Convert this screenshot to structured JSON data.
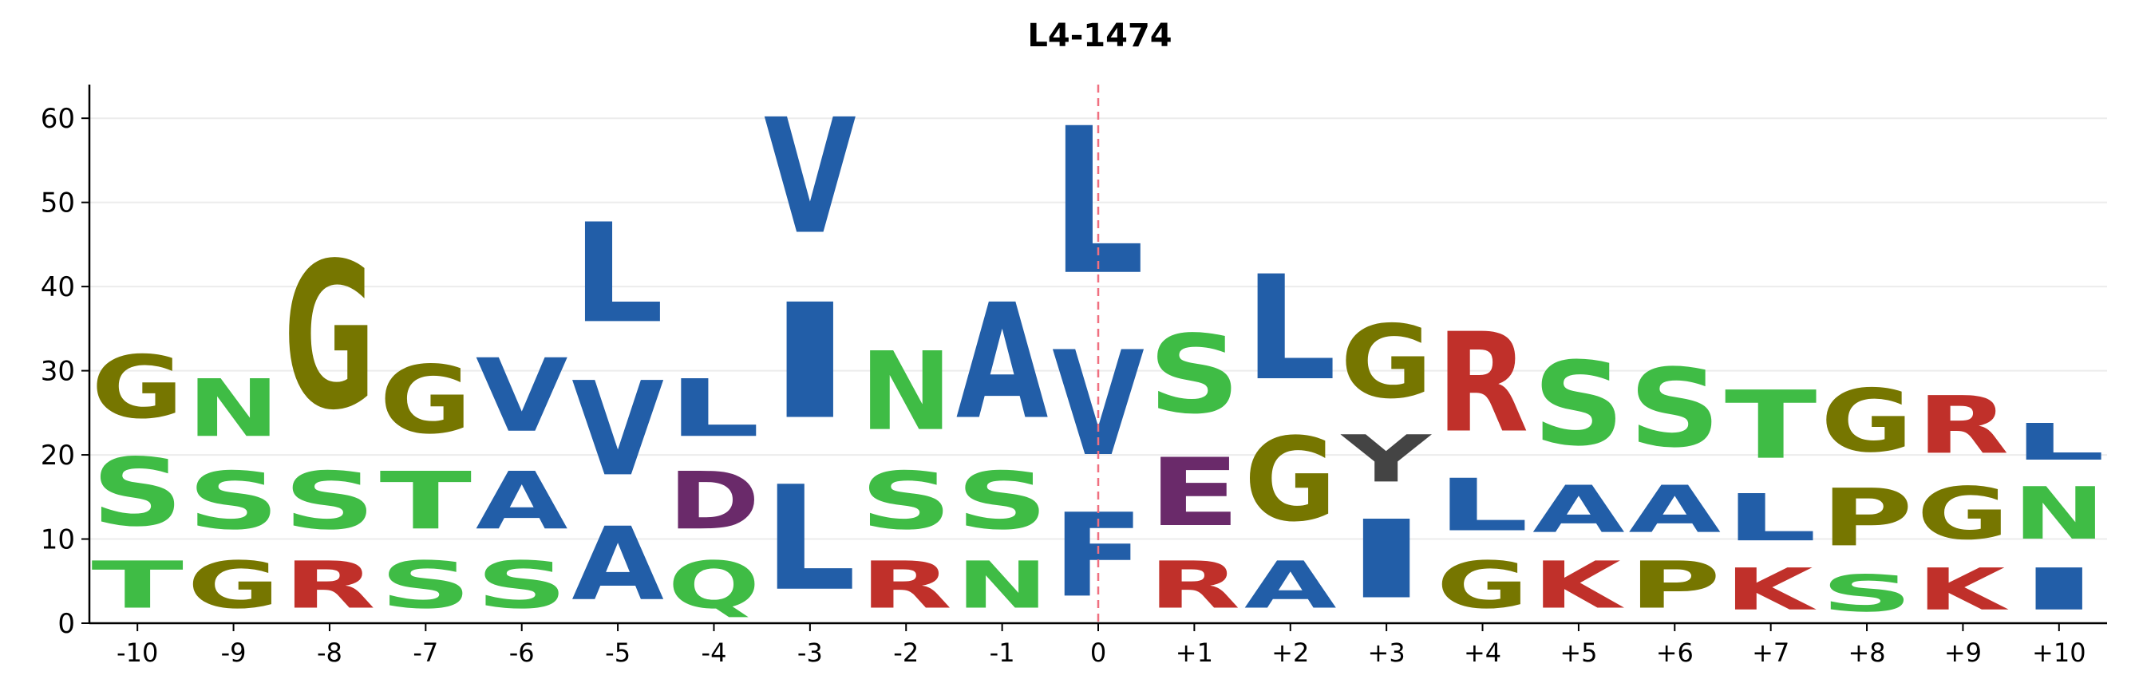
{
  "chart_data": {
    "type": "sequence-logo",
    "title": "L4-1474",
    "xlabel": "",
    "ylabel": "",
    "ylim": [
      0,
      64
    ],
    "yticks": [
      0,
      10,
      20,
      30,
      40,
      50,
      60
    ],
    "grid": "horizontal",
    "reference_line": {
      "x": "0",
      "style": "dashed",
      "color": "#f07080"
    },
    "colors": {
      "A": "#225ea8",
      "V": "#225ea8",
      "L": "#225ea8",
      "I": "#225ea8",
      "F": "#225ea8",
      "S": "#3fbc45",
      "N": "#3fbc45",
      "T": "#3fbc45",
      "Q": "#3fbc45",
      "G": "#767600",
      "P": "#767600",
      "R": "#c0302a",
      "K": "#c0302a",
      "D": "#6a2a6a",
      "E": "#6a2a6a"
    },
    "positions": [
      {
        "label": "-10",
        "stack": [
          {
            "letter": "T",
            "value": 9
          },
          {
            "letter": "S",
            "value": 13
          },
          {
            "letter": "G",
            "value": 12
          }
        ]
      },
      {
        "label": "-9",
        "stack": [
          {
            "letter": "G",
            "value": 9
          },
          {
            "letter": "S",
            "value": 11
          },
          {
            "letter": "N",
            "value": 11
          }
        ]
      },
      {
        "label": "-8",
        "stack": [
          {
            "letter": "R",
            "value": 9
          },
          {
            "letter": "S",
            "value": 11
          },
          {
            "letter": "G",
            "value": 28
          }
        ]
      },
      {
        "label": "-7",
        "stack": [
          {
            "letter": "S",
            "value": 9
          },
          {
            "letter": "T",
            "value": 11
          },
          {
            "letter": "G",
            "value": 13
          }
        ]
      },
      {
        "label": "-6",
        "stack": [
          {
            "letter": "S",
            "value": 9
          },
          {
            "letter": "A",
            "value": 11
          },
          {
            "letter": "V",
            "value": 14
          }
        ]
      },
      {
        "label": "-5",
        "stack": [
          {
            "letter": "A",
            "value": 14
          },
          {
            "letter": "V",
            "value": 18
          },
          {
            "letter": "L",
            "value": 19
          }
        ]
      },
      {
        "label": "-4",
        "stack": [
          {
            "letter": "Q",
            "value": 9
          },
          {
            "letter": "D",
            "value": 11
          },
          {
            "letter": "L",
            "value": 11
          }
        ]
      },
      {
        "label": "-3",
        "stack": [
          {
            "letter": "L",
            "value": 20
          },
          {
            "letter": "I",
            "value": 22
          },
          {
            "letter": "V",
            "value": 22
          }
        ]
      },
      {
        "label": "-2",
        "stack": [
          {
            "letter": "R",
            "value": 9
          },
          {
            "letter": "S",
            "value": 11
          },
          {
            "letter": "N",
            "value": 15
          }
        ]
      },
      {
        "label": "-1",
        "stack": [
          {
            "letter": "N",
            "value": 9
          },
          {
            "letter": "S",
            "value": 11
          },
          {
            "letter": "A",
            "value": 22
          }
        ]
      },
      {
        "label": "0",
        "stack": [
          {
            "letter": "F",
            "value": 16
          },
          {
            "letter": "V",
            "value": 20
          },
          {
            "letter": "L",
            "value": 28
          }
        ]
      },
      {
        "label": "+1",
        "stack": [
          {
            "letter": "R",
            "value": 9
          },
          {
            "letter": "E",
            "value": 13
          },
          {
            "letter": "S",
            "value": 15
          }
        ]
      },
      {
        "label": "+2",
        "stack": [
          {
            "letter": "A",
            "value": 9
          },
          {
            "letter": "G",
            "value": 16
          },
          {
            "letter": "L",
            "value": 20
          }
        ]
      },
      {
        "label": "+3",
        "stack": [
          {
            "letter": "I",
            "value": 15
          },
          {
            "letter": "Y",
            "value": 9
          },
          {
            "letter": "G",
            "value": 14
          }
        ]
      },
      {
        "label": "+4",
        "stack": [
          {
            "letter": "G",
            "value": 9
          },
          {
            "letter": "L",
            "value": 10
          },
          {
            "letter": "R",
            "value": 19
          }
        ]
      },
      {
        "label": "+5",
        "stack": [
          {
            "letter": "K",
            "value": 9
          },
          {
            "letter": "A",
            "value": 9
          },
          {
            "letter": "S",
            "value": 16
          }
        ]
      },
      {
        "label": "+6",
        "stack": [
          {
            "letter": "P",
            "value": 9
          },
          {
            "letter": "A",
            "value": 9
          },
          {
            "letter": "S",
            "value": 15
          }
        ]
      },
      {
        "label": "+7",
        "stack": [
          {
            "letter": "K",
            "value": 8
          },
          {
            "letter": "L",
            "value": 9
          },
          {
            "letter": "T",
            "value": 13
          }
        ]
      },
      {
        "label": "+8",
        "stack": [
          {
            "letter": "S",
            "value": 7
          },
          {
            "letter": "P",
            "value": 11
          },
          {
            "letter": "G",
            "value": 12
          }
        ]
      },
      {
        "label": "+9",
        "stack": [
          {
            "letter": "K",
            "value": 8
          },
          {
            "letter": "G",
            "value": 10
          },
          {
            "letter": "R",
            "value": 11
          }
        ]
      },
      {
        "label": "+10",
        "stack": [
          {
            "letter": "I",
            "value": 8
          },
          {
            "letter": "N",
            "value": 10
          },
          {
            "letter": "L",
            "value": 7
          }
        ]
      }
    ]
  }
}
